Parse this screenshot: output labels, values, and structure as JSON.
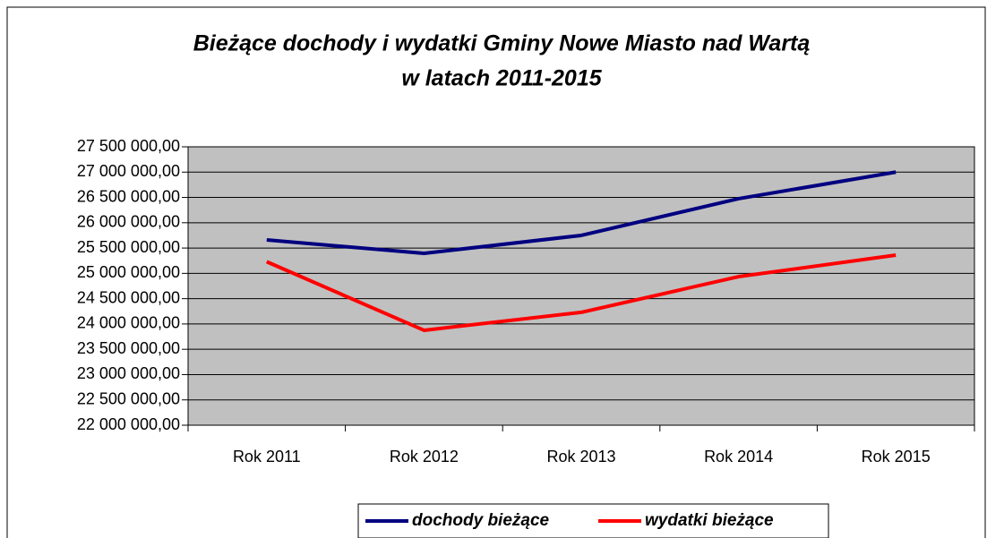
{
  "chart_data": {
    "type": "line",
    "title": "Bieżące dochody i wydatki Gminy Nowe Miasto nad Wartą",
    "subtitle": "w latach 2011-2015",
    "categories": [
      "Rok 2011",
      "Rok 2012",
      "Rok 2013",
      "Rok 2014",
      "Rok 2015"
    ],
    "series": [
      {
        "name": "dochody bieżące",
        "color": "#000080",
        "values": [
          25660000,
          25395000,
          25750000,
          26475000,
          27000000
        ]
      },
      {
        "name": "wydatki bieżące",
        "color": "#ff0000",
        "values": [
          25230000,
          23875000,
          24230000,
          24935000,
          25360000
        ]
      }
    ],
    "ylim": [
      22000000,
      27500000
    ],
    "yticks": [
      {
        "value": 22000000,
        "label": "22 000 000,00"
      },
      {
        "value": 22500000,
        "label": "22 500 000,00"
      },
      {
        "value": 23000000,
        "label": "23 000 000,00"
      },
      {
        "value": 23500000,
        "label": "23 500 000,00"
      },
      {
        "value": 24000000,
        "label": "24 000 000,00"
      },
      {
        "value": 24500000,
        "label": "24 500 000,00"
      },
      {
        "value": 25000000,
        "label": "25 000 000,00"
      },
      {
        "value": 25500000,
        "label": "25 500 000,00"
      },
      {
        "value": 26000000,
        "label": "26 000 000,00"
      },
      {
        "value": 26500000,
        "label": "26 500 000,00"
      },
      {
        "value": 27000000,
        "label": "27 000 000,00"
      },
      {
        "value": 27500000,
        "label": "27 500 000,00"
      }
    ],
    "grid": true,
    "legend": "bottom",
    "plot_background": "#c0c0c0"
  }
}
